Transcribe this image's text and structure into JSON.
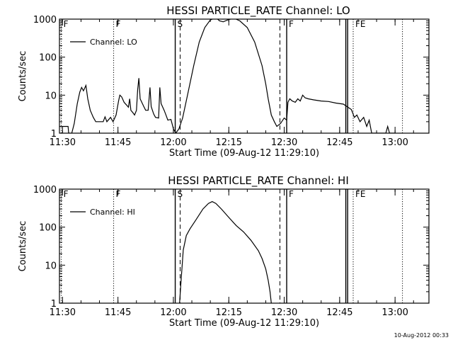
{
  "footer_stamp": "10-Aug-2012 00:33",
  "chart_data": [
    {
      "type": "line",
      "title": "HESSI PARTICLE_RATE Channel: LO",
      "xlabel": "Start Time (09-Aug-12 11:29:10)",
      "ylabel": "Counts/sec",
      "legend": {
        "label": "Channel: LO",
        "placement": "top-left"
      },
      "y_scale": "log",
      "xlim": [
        "11:29:10",
        "13:09:10"
      ],
      "ylim": [
        1,
        1000
      ],
      "x_ticks": [
        "11:30",
        "11:45",
        "12:00",
        "12:15",
        "12:30",
        "12:45",
        "13:00"
      ],
      "y_ticks": [
        "1",
        "10",
        "100",
        "1000"
      ],
      "flags": [
        {
          "time": "11:29:40",
          "label": "F",
          "style": "dotted"
        },
        {
          "time": "11:43:50",
          "label": "F",
          "style": "dotted"
        },
        {
          "time": "12:00:30",
          "label": "S",
          "style": "solid"
        },
        {
          "time": "12:01:50",
          "label": "",
          "style": "dashed"
        },
        {
          "time": "12:28:50",
          "label": "",
          "style": "dashed"
        },
        {
          "time": "12:30:40",
          "label": "F",
          "style": "solid"
        },
        {
          "time": "12:46:40",
          "label": "",
          "style": "solid"
        },
        {
          "time": "12:47:10",
          "label": "",
          "style": "solid"
        },
        {
          "time": "12:48:40",
          "label": "FE",
          "style": "dotted"
        },
        {
          "time": "13:02:00",
          "label": "",
          "style": "dotted"
        }
      ],
      "series": [
        {
          "name": "Channel: LO",
          "points": [
            [
              "11:29:10",
              1.5
            ],
            [
              "11:31:30",
              1.5
            ],
            [
              "11:31:40",
              1
            ],
            [
              "11:32:30",
              1
            ],
            [
              "11:33:10",
              1.8
            ],
            [
              "11:34:00",
              6
            ],
            [
              "11:34:40",
              12
            ],
            [
              "11:35:10",
              16
            ],
            [
              "11:35:40",
              13
            ],
            [
              "11:36:20",
              18
            ],
            [
              "11:36:50",
              8
            ],
            [
              "11:37:30",
              4
            ],
            [
              "11:38:20",
              2.6
            ],
            [
              "11:39:00",
              2
            ],
            [
              "11:41:00",
              2
            ],
            [
              "11:41:30",
              2.7
            ],
            [
              "11:42:00",
              2
            ],
            [
              "11:43:00",
              2.6
            ],
            [
              "11:43:40",
              2
            ],
            [
              "11:44:30",
              3
            ],
            [
              "11:45:10",
              7
            ],
            [
              "11:45:30",
              10
            ],
            [
              "11:46:00",
              9
            ],
            [
              "11:46:40",
              6.5
            ],
            [
              "11:47:20",
              5.5
            ],
            [
              "11:47:50",
              4.8
            ],
            [
              "11:48:10",
              8
            ],
            [
              "11:48:30",
              4
            ],
            [
              "11:49:00",
              3.5
            ],
            [
              "11:49:30",
              3
            ],
            [
              "11:50:00",
              4
            ],
            [
              "11:50:20",
              14
            ],
            [
              "11:50:40",
              28
            ],
            [
              "11:51:00",
              8
            ],
            [
              "11:52:00",
              5
            ],
            [
              "11:52:30",
              4
            ],
            [
              "11:53:10",
              4
            ],
            [
              "11:53:40",
              16
            ],
            [
              "11:54:00",
              5
            ],
            [
              "11:54:40",
              3.2
            ],
            [
              "11:55:10",
              2.6
            ],
            [
              "11:56:00",
              2.5
            ],
            [
              "11:56:20",
              16
            ],
            [
              "11:56:40",
              6
            ],
            [
              "11:57:30",
              4
            ],
            [
              "11:58:00",
              3
            ],
            [
              "11:58:30",
              2.2
            ],
            [
              "11:59:20",
              2.3
            ],
            [
              "12:00:00",
              1.3
            ],
            [
              "12:00:40",
              1
            ],
            [
              "12:01:30",
              1.3
            ],
            [
              "12:02:30",
              2.5
            ],
            [
              "12:04:00",
              12
            ],
            [
              "12:05:30",
              60
            ],
            [
              "12:07:00",
              250
            ],
            [
              "12:08:30",
              600
            ],
            [
              "12:10:00",
              950
            ],
            [
              "12:11:30",
              1100
            ],
            [
              "12:12:30",
              900
            ],
            [
              "12:13:30",
              850
            ],
            [
              "12:15:00",
              980
            ],
            [
              "12:16:30",
              1050
            ],
            [
              "12:18:00",
              900
            ],
            [
              "12:20:00",
              600
            ],
            [
              "12:22:00",
              250
            ],
            [
              "12:24:00",
              60
            ],
            [
              "12:25:00",
              20
            ],
            [
              "12:25:40",
              8
            ],
            [
              "12:26:30",
              3
            ],
            [
              "12:27:20",
              2
            ],
            [
              "12:28:00",
              1.5
            ],
            [
              "12:29:00",
              1.8
            ],
            [
              "12:30:00",
              2.5
            ],
            [
              "12:30:40",
              2.2
            ],
            [
              "12:31:00",
              6.5
            ],
            [
              "12:31:30",
              8
            ],
            [
              "12:32:10",
              7
            ],
            [
              "12:33:00",
              6.5
            ],
            [
              "12:33:40",
              8
            ],
            [
              "12:34:20",
              7
            ],
            [
              "12:35:00",
              10
            ],
            [
              "12:35:40",
              8.5
            ],
            [
              "12:36:30",
              8
            ],
            [
              "12:38:00",
              7.5
            ],
            [
              "12:40:00",
              7
            ],
            [
              "12:42:00",
              6.8
            ],
            [
              "12:44:00",
              6.2
            ],
            [
              "12:46:00",
              5.8
            ],
            [
              "12:47:40",
              4.5
            ],
            [
              "12:48:10",
              4.2
            ],
            [
              "12:49:00",
              2.6
            ],
            [
              "12:49:40",
              3
            ],
            [
              "12:50:30",
              2
            ],
            [
              "12:51:30",
              2.6
            ],
            [
              "12:52:20",
              1.5
            ],
            [
              "12:53:00",
              2.2
            ],
            [
              "12:53:40",
              1
            ],
            [
              "12:57:30",
              1
            ],
            [
              "12:58:00",
              1.5
            ],
            [
              "12:58:30",
              1
            ],
            [
              "13:00:00",
              1
            ]
          ]
        }
      ]
    },
    {
      "type": "line",
      "title": "HESSI PARTICLE_RATE Channel: HI",
      "xlabel": "Start Time (09-Aug-12 11:29:10)",
      "ylabel": "Counts/sec",
      "legend": {
        "label": "Channel: HI",
        "placement": "top-left"
      },
      "y_scale": "log",
      "xlim": [
        "11:29:10",
        "13:09:10"
      ],
      "ylim": [
        1,
        1000
      ],
      "x_ticks": [
        "11:30",
        "11:45",
        "12:00",
        "12:15",
        "12:30",
        "12:45",
        "13:00"
      ],
      "y_ticks": [
        "1",
        "10",
        "100",
        "1000"
      ],
      "flags": [
        {
          "time": "11:29:40",
          "label": "F",
          "style": "dotted"
        },
        {
          "time": "11:43:50",
          "label": "F",
          "style": "dotted"
        },
        {
          "time": "12:00:30",
          "label": "S",
          "style": "solid"
        },
        {
          "time": "12:01:50",
          "label": "",
          "style": "dashed"
        },
        {
          "time": "12:28:50",
          "label": "",
          "style": "dashed"
        },
        {
          "time": "12:30:40",
          "label": "F",
          "style": "solid"
        },
        {
          "time": "12:46:40",
          "label": "",
          "style": "solid"
        },
        {
          "time": "12:47:10",
          "label": "",
          "style": "solid"
        },
        {
          "time": "12:48:40",
          "label": "FE",
          "style": "dotted"
        },
        {
          "time": "13:02:00",
          "label": "",
          "style": "dotted"
        }
      ],
      "series": [
        {
          "name": "Channel: HI",
          "points": [
            [
              "12:01:40",
              1
            ],
            [
              "12:02:00",
              3
            ],
            [
              "12:02:40",
              25
            ],
            [
              "12:03:30",
              60
            ],
            [
              "12:04:30",
              90
            ],
            [
              "12:06:00",
              150
            ],
            [
              "12:08:00",
              300
            ],
            [
              "12:09:30",
              420
            ],
            [
              "12:10:30",
              470
            ],
            [
              "12:11:30",
              420
            ],
            [
              "12:13:00",
              300
            ],
            [
              "12:15:00",
              180
            ],
            [
              "12:17:00",
              110
            ],
            [
              "12:19:00",
              75
            ],
            [
              "12:21:00",
              45
            ],
            [
              "12:23:00",
              24
            ],
            [
              "12:24:00",
              15
            ],
            [
              "12:25:00",
              8
            ],
            [
              "12:25:40",
              4
            ],
            [
              "12:26:10",
              2
            ],
            [
              "12:26:30",
              1
            ]
          ]
        }
      ]
    }
  ]
}
